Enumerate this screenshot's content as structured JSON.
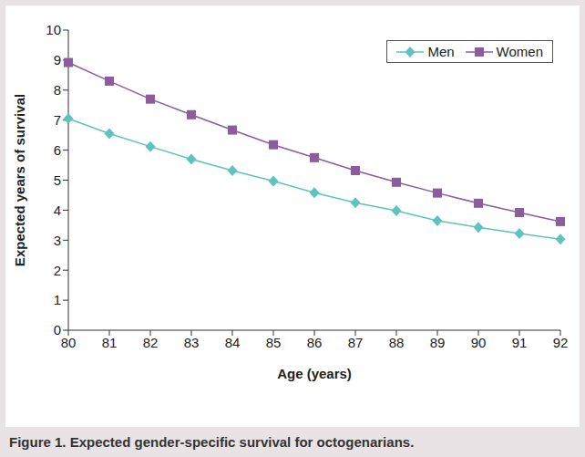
{
  "chart_data": {
    "type": "line",
    "title": "Figure 1. Expected gender-specific survival for octogenarians.",
    "x_label": "Age (years)",
    "y_label": "Expected years of survival",
    "categories": [
      "80",
      "81",
      "82",
      "83",
      "84",
      "85",
      "86",
      "87",
      "88",
      "89",
      "90",
      "91",
      "92"
    ],
    "series": [
      {
        "name": "Men",
        "color": "#5ec3bf",
        "marker": "diamond",
        "values": [
          7.05,
          6.55,
          6.12,
          5.7,
          5.32,
          4.97,
          4.58,
          4.25,
          3.98,
          3.65,
          3.43,
          3.22,
          3.03
        ]
      },
      {
        "name": "Women",
        "color": "#8c5c9f",
        "marker": "square",
        "values": [
          8.92,
          8.3,
          7.7,
          7.18,
          6.67,
          6.18,
          5.75,
          5.32,
          4.93,
          4.57,
          4.23,
          3.92,
          3.62
        ]
      }
    ],
    "ylim": [
      0,
      10
    ],
    "yticks": [
      0,
      1,
      2,
      3,
      4,
      5,
      6,
      7,
      8,
      9,
      10
    ],
    "grid": false,
    "legend": "upper right"
  }
}
